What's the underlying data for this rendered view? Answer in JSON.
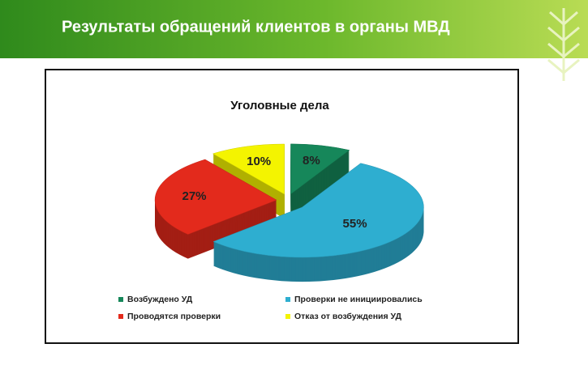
{
  "header": {
    "title": "Результаты обращений клиентов в органы МВД"
  },
  "chart_data": {
    "type": "pie",
    "title": "Уголовные дела",
    "categories": [
      "Возбуждено УД",
      "Проверки не инициировались",
      "Проводятся проверки",
      "Отказ от возбуждения УД"
    ],
    "values": [
      8,
      55,
      27,
      10
    ],
    "value_labels": [
      "8%",
      "55%",
      "27%",
      "10%"
    ],
    "colors": [
      "#16875a",
      "#2eaed0",
      "#e32a1c",
      "#f4f400"
    ]
  }
}
